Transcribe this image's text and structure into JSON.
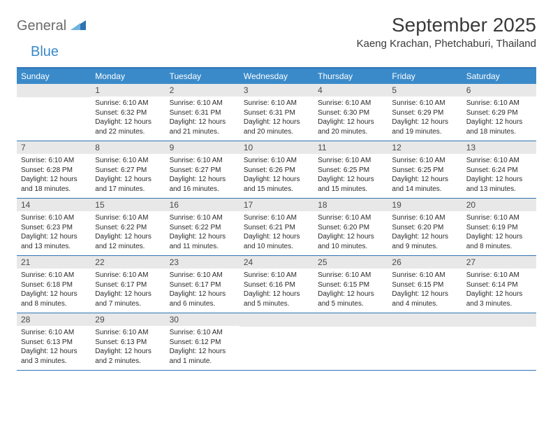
{
  "brand": {
    "part1": "General",
    "part2": "Blue"
  },
  "title": "September 2025",
  "location": "Kaeng Krachan, Phetchaburi, Thailand",
  "colors": {
    "header_bg": "#3a8ac9",
    "border": "#2e74b5",
    "date_bg": "#e8e8e8",
    "text": "#2a2a2a",
    "logo_gray": "#6b6b6b",
    "logo_blue": "#3a8ac9"
  },
  "dayNames": [
    "Sunday",
    "Monday",
    "Tuesday",
    "Wednesday",
    "Thursday",
    "Friday",
    "Saturday"
  ],
  "weeks": [
    [
      null,
      {
        "d": "1",
        "sr": "Sunrise: 6:10 AM",
        "ss": "Sunset: 6:32 PM",
        "dl": "Daylight: 12 hours and 22 minutes."
      },
      {
        "d": "2",
        "sr": "Sunrise: 6:10 AM",
        "ss": "Sunset: 6:31 PM",
        "dl": "Daylight: 12 hours and 21 minutes."
      },
      {
        "d": "3",
        "sr": "Sunrise: 6:10 AM",
        "ss": "Sunset: 6:31 PM",
        "dl": "Daylight: 12 hours and 20 minutes."
      },
      {
        "d": "4",
        "sr": "Sunrise: 6:10 AM",
        "ss": "Sunset: 6:30 PM",
        "dl": "Daylight: 12 hours and 20 minutes."
      },
      {
        "d": "5",
        "sr": "Sunrise: 6:10 AM",
        "ss": "Sunset: 6:29 PM",
        "dl": "Daylight: 12 hours and 19 minutes."
      },
      {
        "d": "6",
        "sr": "Sunrise: 6:10 AM",
        "ss": "Sunset: 6:29 PM",
        "dl": "Daylight: 12 hours and 18 minutes."
      }
    ],
    [
      {
        "d": "7",
        "sr": "Sunrise: 6:10 AM",
        "ss": "Sunset: 6:28 PM",
        "dl": "Daylight: 12 hours and 18 minutes."
      },
      {
        "d": "8",
        "sr": "Sunrise: 6:10 AM",
        "ss": "Sunset: 6:27 PM",
        "dl": "Daylight: 12 hours and 17 minutes."
      },
      {
        "d": "9",
        "sr": "Sunrise: 6:10 AM",
        "ss": "Sunset: 6:27 PM",
        "dl": "Daylight: 12 hours and 16 minutes."
      },
      {
        "d": "10",
        "sr": "Sunrise: 6:10 AM",
        "ss": "Sunset: 6:26 PM",
        "dl": "Daylight: 12 hours and 15 minutes."
      },
      {
        "d": "11",
        "sr": "Sunrise: 6:10 AM",
        "ss": "Sunset: 6:25 PM",
        "dl": "Daylight: 12 hours and 15 minutes."
      },
      {
        "d": "12",
        "sr": "Sunrise: 6:10 AM",
        "ss": "Sunset: 6:25 PM",
        "dl": "Daylight: 12 hours and 14 minutes."
      },
      {
        "d": "13",
        "sr": "Sunrise: 6:10 AM",
        "ss": "Sunset: 6:24 PM",
        "dl": "Daylight: 12 hours and 13 minutes."
      }
    ],
    [
      {
        "d": "14",
        "sr": "Sunrise: 6:10 AM",
        "ss": "Sunset: 6:23 PM",
        "dl": "Daylight: 12 hours and 13 minutes."
      },
      {
        "d": "15",
        "sr": "Sunrise: 6:10 AM",
        "ss": "Sunset: 6:22 PM",
        "dl": "Daylight: 12 hours and 12 minutes."
      },
      {
        "d": "16",
        "sr": "Sunrise: 6:10 AM",
        "ss": "Sunset: 6:22 PM",
        "dl": "Daylight: 12 hours and 11 minutes."
      },
      {
        "d": "17",
        "sr": "Sunrise: 6:10 AM",
        "ss": "Sunset: 6:21 PM",
        "dl": "Daylight: 12 hours and 10 minutes."
      },
      {
        "d": "18",
        "sr": "Sunrise: 6:10 AM",
        "ss": "Sunset: 6:20 PM",
        "dl": "Daylight: 12 hours and 10 minutes."
      },
      {
        "d": "19",
        "sr": "Sunrise: 6:10 AM",
        "ss": "Sunset: 6:20 PM",
        "dl": "Daylight: 12 hours and 9 minutes."
      },
      {
        "d": "20",
        "sr": "Sunrise: 6:10 AM",
        "ss": "Sunset: 6:19 PM",
        "dl": "Daylight: 12 hours and 8 minutes."
      }
    ],
    [
      {
        "d": "21",
        "sr": "Sunrise: 6:10 AM",
        "ss": "Sunset: 6:18 PM",
        "dl": "Daylight: 12 hours and 8 minutes."
      },
      {
        "d": "22",
        "sr": "Sunrise: 6:10 AM",
        "ss": "Sunset: 6:17 PM",
        "dl": "Daylight: 12 hours and 7 minutes."
      },
      {
        "d": "23",
        "sr": "Sunrise: 6:10 AM",
        "ss": "Sunset: 6:17 PM",
        "dl": "Daylight: 12 hours and 6 minutes."
      },
      {
        "d": "24",
        "sr": "Sunrise: 6:10 AM",
        "ss": "Sunset: 6:16 PM",
        "dl": "Daylight: 12 hours and 5 minutes."
      },
      {
        "d": "25",
        "sr": "Sunrise: 6:10 AM",
        "ss": "Sunset: 6:15 PM",
        "dl": "Daylight: 12 hours and 5 minutes."
      },
      {
        "d": "26",
        "sr": "Sunrise: 6:10 AM",
        "ss": "Sunset: 6:15 PM",
        "dl": "Daylight: 12 hours and 4 minutes."
      },
      {
        "d": "27",
        "sr": "Sunrise: 6:10 AM",
        "ss": "Sunset: 6:14 PM",
        "dl": "Daylight: 12 hours and 3 minutes."
      }
    ],
    [
      {
        "d": "28",
        "sr": "Sunrise: 6:10 AM",
        "ss": "Sunset: 6:13 PM",
        "dl": "Daylight: 12 hours and 3 minutes."
      },
      {
        "d": "29",
        "sr": "Sunrise: 6:10 AM",
        "ss": "Sunset: 6:13 PM",
        "dl": "Daylight: 12 hours and 2 minutes."
      },
      {
        "d": "30",
        "sr": "Sunrise: 6:10 AM",
        "ss": "Sunset: 6:12 PM",
        "dl": "Daylight: 12 hours and 1 minute."
      },
      null,
      null,
      null,
      null
    ]
  ]
}
